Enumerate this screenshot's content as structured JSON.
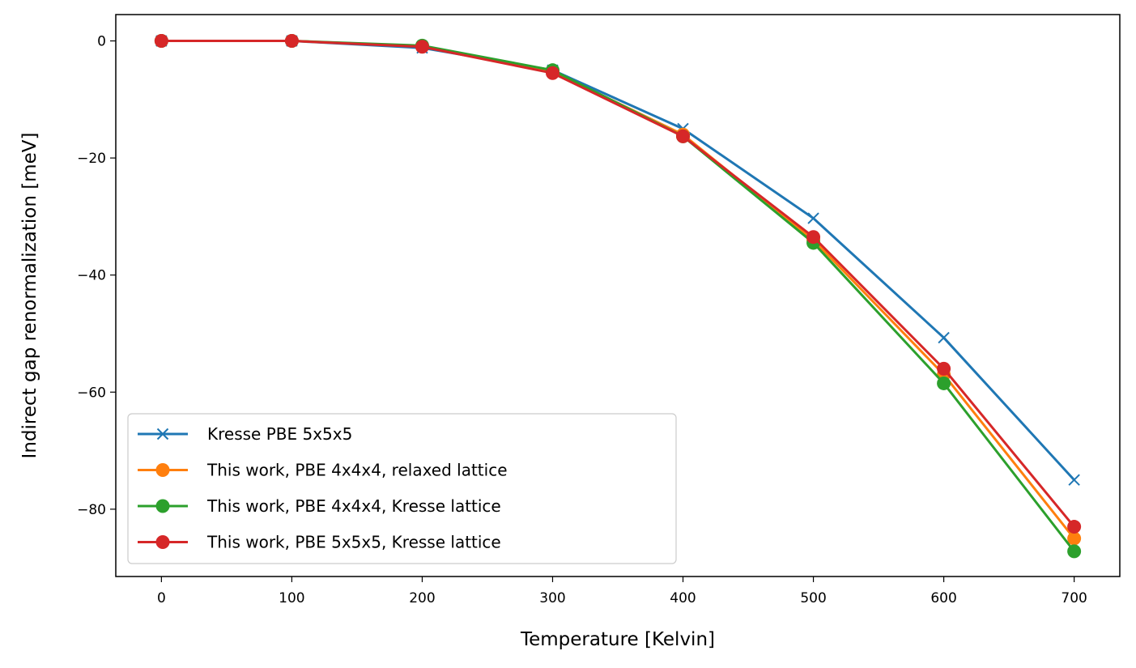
{
  "chart_data": {
    "type": "line",
    "title": "",
    "xlabel": "Temperature [Kelvin]",
    "ylabel": "Indirect gap renormalization [meV]",
    "x": [
      0,
      100,
      200,
      300,
      400,
      500,
      600,
      700
    ],
    "xlim": [
      -35,
      735
    ],
    "ylim": [
      -91.5,
      4.5
    ],
    "xticks": [
      0,
      100,
      200,
      300,
      400,
      500,
      600,
      700
    ],
    "xtick_labels": [
      "0",
      "100",
      "200",
      "300",
      "400",
      "500",
      "600",
      "700"
    ],
    "yticks": [
      0,
      -20,
      -40,
      -60,
      -80
    ],
    "ytick_labels": [
      "0",
      "−20",
      "−40",
      "−60",
      "−80"
    ],
    "grid": false,
    "legend_position": "lower-left",
    "series": [
      {
        "name": "Kresse PBE 5x5x5",
        "color": "#1f77b4",
        "marker": "x",
        "values": [
          0,
          0,
          -1.2,
          -5.0,
          -15.0,
          -30.3,
          -50.7,
          -75.0
        ]
      },
      {
        "name": "This work, PBE 4x4x4, relaxed lattice",
        "color": "#ff7f0e",
        "marker": "circle",
        "values": [
          0,
          0,
          -0.9,
          -5.2,
          -16.0,
          -34.0,
          -57.0,
          -85.0
        ]
      },
      {
        "name": "This work, PBE 4x4x4, Kresse lattice",
        "color": "#2ca02c",
        "marker": "circle",
        "values": [
          0,
          0,
          -0.8,
          -5.0,
          -16.3,
          -34.5,
          -58.5,
          -87.2
        ]
      },
      {
        "name": "This work, PBE 5x5x5, Kresse lattice",
        "color": "#d62728",
        "marker": "circle",
        "values": [
          0,
          0,
          -1.0,
          -5.5,
          -16.3,
          -33.5,
          -56.0,
          -83.0
        ]
      }
    ]
  }
}
